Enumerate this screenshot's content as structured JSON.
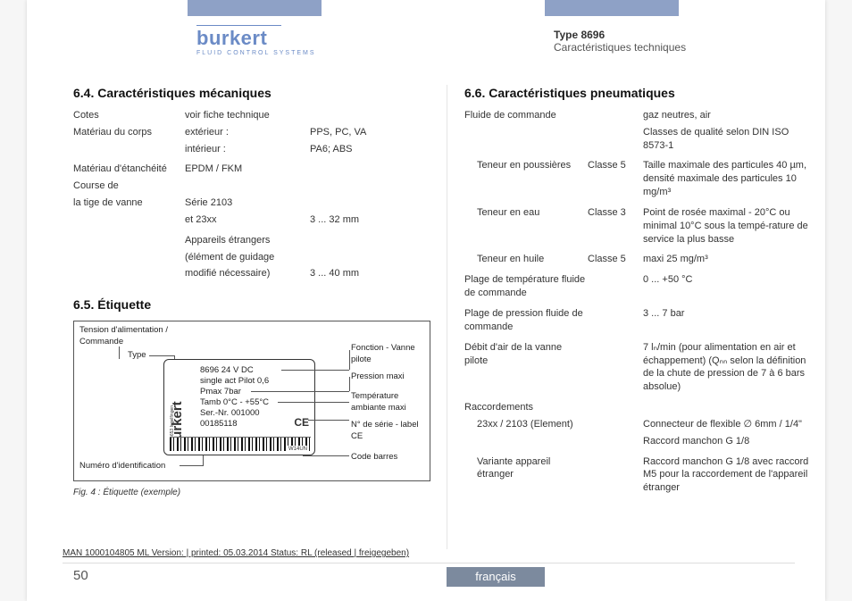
{
  "colors": {
    "header_block": "#8ea1c6",
    "brand": "#6b8bc6",
    "lang_badge_bg": "#7c8a9e",
    "lang_badge_fg": "#ffffff",
    "text": "#333333",
    "divider": "#e5e5e5",
    "page_bg": "#f6f6f6"
  },
  "brand": {
    "name": "burkert",
    "tagline": "FLUID CONTROL SYSTEMS"
  },
  "doc": {
    "type": "Type 8696",
    "section": "Caractéristiques techniques"
  },
  "s64": {
    "title": "6.4.  Caractéristiques mécaniques",
    "rows": [
      {
        "c1": "Cotes",
        "c2": "voir fiche technique",
        "c3": ""
      },
      {
        "c1": "Matériau du corps",
        "c2": "extérieur :",
        "c3": "PPS, PC, VA"
      },
      {
        "c1": "",
        "c2": "intérieur :",
        "c3": "PA6; ABS"
      },
      {
        "c1": "Matériau d'étanchéité",
        "c2": "EPDM / FKM",
        "c3": ""
      },
      {
        "c1": "Course de",
        "c2": "",
        "c3": ""
      },
      {
        "c1": "la tige de vanne",
        "c2": "Série 2103",
        "c3": ""
      },
      {
        "c1": "",
        "c2": "et 23xx",
        "c3": "3 ... 32 mm"
      },
      {
        "c1": "",
        "c2": "Appareils étrangers",
        "c3": ""
      },
      {
        "c1": "",
        "c2": "(élément de guidage",
        "c3": ""
      },
      {
        "c1": "",
        "c2": "modifié nécessaire)",
        "c3": "3 ... 40 mm"
      }
    ]
  },
  "s65": {
    "title": "6.5.  Étiquette",
    "caption": "Fig. 4 :    Étiquette (exemple)",
    "annotations_left": {
      "supply": "Tension d'alimentation / Commande",
      "type": "Type",
      "ident": "Numéro d'identification"
    },
    "annotations_right": {
      "func": "Fonction - Vanne pilote",
      "pmax": "Pression maxi",
      "tamb": "Température ambiante maxi",
      "serial": "N° de série - label CE",
      "barcode": "Code barres"
    },
    "plate": {
      "brand": "burkert",
      "sub": "D-74653 Ingelfingen",
      "l1": "8696 24 V DC",
      "l2": "single act    Pilot 0,6",
      "l3": "Pmax 7bar",
      "l4": "Tamb 0°C - +55°C",
      "l5": "Ser.-Nr. 001000",
      "l6": "00185118",
      "ce": "CE",
      "barcode_txt": "W14UN"
    }
  },
  "s66": {
    "title": "6.6.  Caractéristiques pneumatiques",
    "rows": [
      {
        "c1": "Fluide de commande",
        "c2": "",
        "c3": "gaz neutres, air"
      },
      {
        "c1": "",
        "c2": "",
        "c3": "Classes de qualité selon DIN ISO 8573-1"
      },
      {
        "c1": "Teneur en poussières",
        "indent": true,
        "c2": "Classe 5",
        "c3": "Taille maximale des particules 40 µm, densité maximale des particules 10 mg/m³"
      },
      {
        "c1": "Teneur en eau",
        "indent": true,
        "c2": "Classe 3",
        "c3": "Point de rosée maximal - 20°C ou minimal 10°C sous la tempé-rature de service la plus basse"
      },
      {
        "c1": "Teneur en huile",
        "indent": true,
        "c2": "Classe 5",
        "c3": "maxi 25 mg/m³"
      },
      {
        "c1": "Plage de température fluide de commande",
        "c2": "",
        "c3": "0 ... +50 °C"
      },
      {
        "c1": "Plage de pression fluide de commande",
        "c2": "",
        "c3": "3 ... 7 bar"
      },
      {
        "c1": "Débit d'air de la vanne pilote",
        "c2": "",
        "c3": "7 lₙ/min (pour alimentation en air et échappement) (Qₙₙ selon la définition de la chute de pression de 7 à 6 bars absolue)"
      },
      {
        "c1": "Raccordements",
        "c2": "",
        "c3": ""
      },
      {
        "c1": "23xx / 2103 (Element)",
        "indent": true,
        "c2": "",
        "c3": "Connecteur de flexible ∅ 6mm / 1/4\""
      },
      {
        "c1": "",
        "c2": "",
        "c3": "Raccord manchon G 1/8"
      },
      {
        "c1": "Variante appareil étranger",
        "indent": true,
        "c2": "",
        "c3": "Raccord manchon G 1/8 avec raccord M5 pour la raccordement de l'appareil étranger"
      }
    ]
  },
  "footer": {
    "man": "MAN 1000104805 ML Version: | printed: 05.03.2014 Status: RL (released | freigegeben)",
    "page": "50",
    "lang": "français"
  }
}
